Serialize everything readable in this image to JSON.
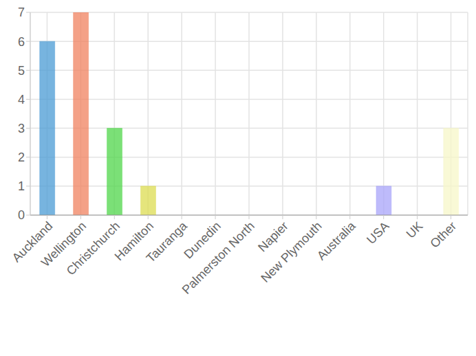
{
  "chart_data": {
    "type": "bar",
    "categories": [
      "Auckland",
      "Wellington",
      "Christchurch",
      "Hamilton",
      "Tauranga",
      "Dunedin",
      "Palmerston North",
      "Napier",
      "New Plymouth",
      "Australia",
      "USA",
      "UK",
      "Other"
    ],
    "values": [
      6,
      7,
      3,
      1,
      0,
      0,
      0,
      0,
      0,
      0,
      1,
      0,
      3
    ],
    "colors": [
      "#4a9bd4",
      "#f0825f",
      "#4fd64a",
      "#dcdc50",
      "#f2a65a",
      "#9b6fd6",
      "#5ad6c8",
      "#d65a9b",
      "#8bc34a",
      "#607d8b",
      "#a8a4fa",
      "#ffb74d",
      "#f7f7c8"
    ],
    "ylim": [
      0,
      7
    ],
    "yticks": [
      0,
      1,
      2,
      3,
      4,
      5,
      6,
      7
    ],
    "grid": true
  }
}
